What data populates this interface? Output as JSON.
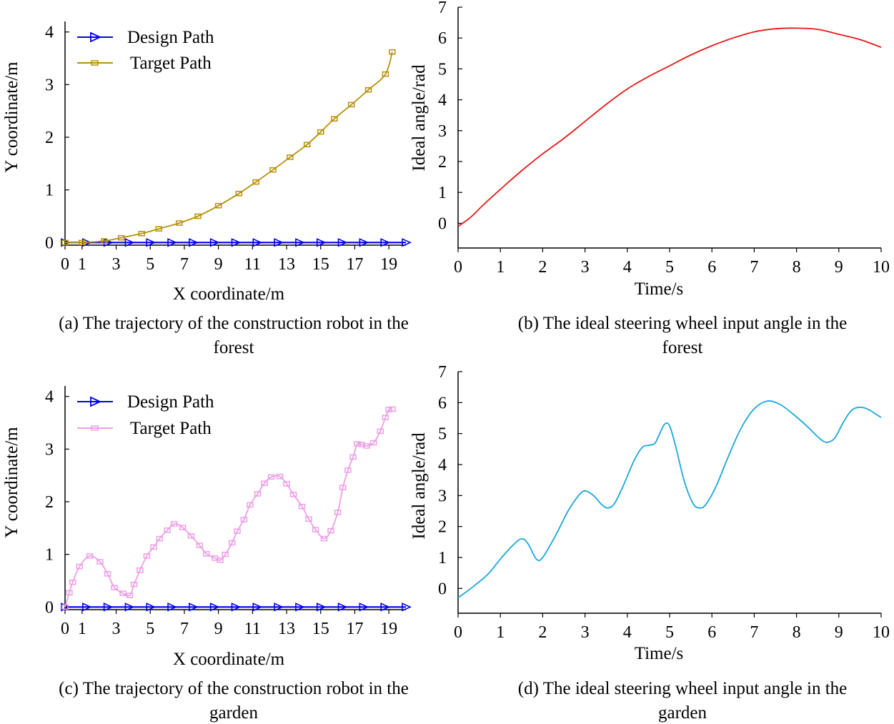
{
  "chart_data": [
    {
      "id": "a",
      "type": "line",
      "title": "",
      "caption_lines": [
        "(a) The trajectory of the construction robot in the",
        "forest"
      ],
      "xlabel": "X coordinate/m",
      "ylabel": "Y coordinate/m",
      "xlim": [
        0,
        20
      ],
      "ylim": [
        -0.05,
        4.2
      ],
      "xticks": [
        0,
        1,
        3,
        5,
        7,
        9,
        11,
        13,
        15,
        17,
        19
      ],
      "yticks": [
        0,
        1,
        2,
        3,
        4
      ],
      "legend": "top-left",
      "series": [
        {
          "name": "Design Path",
          "color": "#0000ee",
          "marker": "triangle-right",
          "x": [
            0,
            1.25,
            2.5,
            3.75,
            5,
            6.25,
            7.5,
            8.75,
            10,
            11.25,
            12.5,
            13.75,
            15,
            16.25,
            17.5,
            18.75,
            20
          ],
          "y": [
            0,
            0,
            0,
            0,
            0,
            0,
            0,
            0,
            0,
            0,
            0,
            0,
            0,
            0,
            0,
            0,
            0
          ]
        },
        {
          "name": "Target Path",
          "color": "#b8900a",
          "marker": "square",
          "x": [
            0,
            1,
            2.3,
            3.3,
            4.5,
            5.5,
            6.7,
            7.8,
            9.0,
            10.2,
            11.2,
            12.2,
            13.2,
            14.2,
            15.0,
            15.8,
            16.8,
            17.8,
            18.8,
            19.2
          ],
          "y": [
            0.0,
            0.0,
            0.03,
            0.09,
            0.17,
            0.26,
            0.37,
            0.5,
            0.7,
            0.93,
            1.15,
            1.38,
            1.62,
            1.86,
            2.1,
            2.35,
            2.62,
            2.9,
            3.2,
            3.62
          ]
        }
      ]
    },
    {
      "id": "b",
      "type": "line",
      "title": "",
      "caption_lines": [
        "(b) The ideal steering wheel input angle in the",
        "forest"
      ],
      "xlabel": "Time/s",
      "ylabel": "Ideal angle/rad",
      "xlim": [
        0,
        10
      ],
      "ylim": [
        -0.8,
        7
      ],
      "xticks": [
        0,
        1,
        2,
        3,
        4,
        5,
        6,
        7,
        8,
        9,
        10
      ],
      "yticks": [
        0,
        1,
        2,
        3,
        4,
        5,
        6,
        7
      ],
      "series": [
        {
          "name": "Ideal angle",
          "color": "#e51919",
          "x": [
            0,
            0.3,
            0.6,
            1,
            1.5,
            2,
            2.5,
            3,
            3.5,
            4,
            4.5,
            5,
            5.5,
            6,
            6.5,
            7,
            7.5,
            8,
            8.5,
            9,
            9.5,
            10
          ],
          "y": [
            -0.1,
            0.2,
            0.6,
            1.1,
            1.7,
            2.25,
            2.75,
            3.3,
            3.85,
            4.35,
            4.75,
            5.1,
            5.45,
            5.75,
            6.0,
            6.2,
            6.3,
            6.32,
            6.28,
            6.12,
            5.95,
            5.7
          ]
        }
      ]
    },
    {
      "id": "c",
      "type": "line",
      "title": "",
      "caption_lines": [
        "(c) The trajectory of the construction robot in the",
        "garden"
      ],
      "xlabel": "X coordinate/m",
      "ylabel": "Y coordinate/m",
      "xlim": [
        0,
        20
      ],
      "ylim": [
        -0.05,
        4.2
      ],
      "xticks": [
        0,
        1,
        3,
        5,
        7,
        9,
        11,
        13,
        15,
        17,
        19
      ],
      "yticks": [
        0,
        1,
        2,
        3,
        4
      ],
      "legend": "top-left",
      "series": [
        {
          "name": "Design Path",
          "color": "#0000ee",
          "marker": "triangle-right",
          "x": [
            0,
            1.25,
            2.5,
            3.75,
            5,
            6.25,
            7.5,
            8.75,
            10,
            11.25,
            12.5,
            13.75,
            15,
            16.25,
            17.5,
            18.75,
            20
          ],
          "y": [
            0,
            0,
            0,
            0,
            0,
            0,
            0,
            0,
            0,
            0,
            0,
            0,
            0,
            0,
            0,
            0,
            0
          ]
        },
        {
          "name": "Target Path",
          "color": "#ee9ee6",
          "marker": "square",
          "x": [
            0,
            0.25,
            0.45,
            0.85,
            1.45,
            2.05,
            2.5,
            2.9,
            3.4,
            3.8,
            4.05,
            4.4,
            4.8,
            5.2,
            5.55,
            6.0,
            6.4,
            6.9,
            7.4,
            7.9,
            8.3,
            8.8,
            9.1,
            9.4,
            9.8,
            10.1,
            10.5,
            10.85,
            11.3,
            11.7,
            12.1,
            12.6,
            13.0,
            13.4,
            13.9,
            14.3,
            14.7,
            15.2,
            15.6,
            16.0,
            16.3,
            16.6,
            16.9,
            17.15,
            17.4,
            17.7,
            18.1,
            18.5,
            18.8,
            19.0,
            19.2
          ],
          "y": [
            0.0,
            0.27,
            0.47,
            0.77,
            0.97,
            0.86,
            0.63,
            0.37,
            0.26,
            0.22,
            0.43,
            0.7,
            0.97,
            1.14,
            1.3,
            1.46,
            1.58,
            1.51,
            1.35,
            1.17,
            1.01,
            0.93,
            0.89,
            1.0,
            1.22,
            1.44,
            1.66,
            1.94,
            2.15,
            2.35,
            2.47,
            2.48,
            2.34,
            2.14,
            1.91,
            1.67,
            1.47,
            1.3,
            1.45,
            1.8,
            2.27,
            2.6,
            2.85,
            3.1,
            3.09,
            3.06,
            3.12,
            3.34,
            3.6,
            3.75,
            3.76
          ]
        }
      ]
    },
    {
      "id": "d",
      "type": "line",
      "title": "",
      "caption_lines": [
        "(d) The ideal steering wheel input angle in the",
        "garden"
      ],
      "xlabel": "Time/s",
      "ylabel": "Ideal angle/rad",
      "xlim": [
        0,
        10
      ],
      "ylim": [
        -0.8,
        7
      ],
      "xticks": [
        0,
        1,
        2,
        3,
        4,
        5,
        6,
        7,
        8,
        9,
        10
      ],
      "yticks": [
        0,
        1,
        2,
        3,
        4,
        5,
        6,
        7
      ],
      "series": [
        {
          "name": "Ideal angle",
          "color": "#1aa7dc",
          "x": [
            0,
            0.3,
            0.7,
            1.0,
            1.3,
            1.5,
            1.65,
            1.85,
            2.0,
            2.3,
            2.6,
            2.85,
            3.0,
            3.2,
            3.4,
            3.55,
            3.7,
            3.9,
            4.15,
            4.35,
            4.5,
            4.65,
            4.75,
            4.88,
            5.0,
            5.15,
            5.35,
            5.55,
            5.7,
            5.85,
            6.1,
            6.4,
            6.7,
            7.0,
            7.3,
            7.6,
            7.9,
            8.2,
            8.5,
            8.7,
            8.9,
            9.1,
            9.3,
            9.5,
            9.7,
            9.85,
            10.0
          ],
          "y": [
            -0.3,
            0.0,
            0.45,
            0.95,
            1.4,
            1.6,
            1.45,
            0.95,
            1.0,
            1.7,
            2.5,
            3.0,
            3.15,
            3.0,
            2.7,
            2.6,
            2.75,
            3.3,
            4.1,
            4.55,
            4.62,
            4.68,
            4.95,
            5.3,
            5.25,
            4.55,
            3.45,
            2.75,
            2.6,
            2.7,
            3.3,
            4.3,
            5.2,
            5.8,
            6.05,
            5.95,
            5.65,
            5.3,
            4.9,
            4.72,
            4.85,
            5.35,
            5.75,
            5.85,
            5.78,
            5.65,
            5.52
          ]
        }
      ]
    }
  ]
}
